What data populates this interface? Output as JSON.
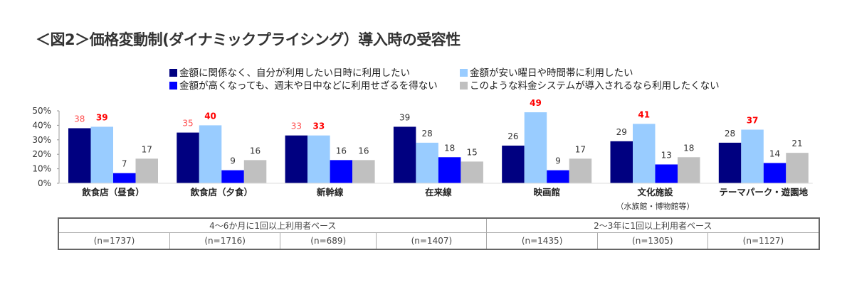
{
  "title": "＜図2＞価格変動制(ダイナミックプライシング）導入時の受容性",
  "legend": [
    {
      "label": "金額に関係なく、自分が利用したい日時に利用したい",
      "color": "#000080"
    },
    {
      "label": "金額が安い曜日や時間帯に利用したい",
      "color": "#99CCFF"
    },
    {
      "label": "金額が高くなっても、週末や日中などに利用せざるを得ない",
      "color": "#0000FF"
    },
    {
      "label": "このような料金システムが導入されるなら利用したくない",
      "color": "#C0C0C0"
    }
  ],
  "chart_data": {
    "type": "bar",
    "title": "＜図2＞価格変動制(ダイナミックプライシング）導入時の受容性",
    "xlabel": "",
    "ylabel": "",
    "ylim": [
      0,
      50
    ],
    "yticks": [
      "0%",
      "10%",
      "20%",
      "30%",
      "40%",
      "50%"
    ],
    "legend_position": "top",
    "categories": [
      "飲食店（昼食）",
      "飲食店（夕食）",
      "新幹線",
      "在来線",
      "映画館",
      "文化施設",
      "テーマパーク・遊園地"
    ],
    "category_sublabels": [
      "",
      "",
      "",
      "",
      "",
      "（水族館・博物館等）",
      ""
    ],
    "series": [
      {
        "name": "金額に関係なく、自分が利用したい日時に利用したい",
        "color": "#000080",
        "values": [
          38,
          35,
          33,
          39,
          26,
          29,
          28
        ]
      },
      {
        "name": "金額が安い曜日や時間帯に利用したい",
        "color": "#99CCFF",
        "values": [
          39,
          40,
          33,
          28,
          49,
          41,
          37
        ]
      },
      {
        "name": "金額が高くなっても、週末や日中などに利用せざるを得ない",
        "color": "#0000FF",
        "values": [
          7,
          9,
          16,
          18,
          9,
          13,
          14
        ]
      },
      {
        "name": "このような料金システムが導入されるなら利用したくない",
        "color": "#C0C0C0",
        "values": [
          17,
          16,
          16,
          15,
          17,
          18,
          21
        ]
      }
    ],
    "label_highlight": {
      "series0_light_red_groups": [
        0,
        1,
        2
      ],
      "series1_bold_red_groups": [
        0,
        1,
        2,
        4,
        5,
        6
      ],
      "light_red": "#FF5050",
      "bold_red": "#FF0000",
      "normal": "#333333"
    },
    "grid": false
  },
  "base_table": {
    "groups": [
      {
        "label": "4〜6か月に1回以上利用者ベース",
        "n": [
          "(n=1737)",
          "(n=1716)",
          "(n=689)",
          "(n=1407)"
        ]
      },
      {
        "label": "2〜3年に1回以上利用者ベース",
        "n": [
          "(n=1435)",
          "(n=1305)",
          "(n=1127)"
        ]
      }
    ]
  }
}
